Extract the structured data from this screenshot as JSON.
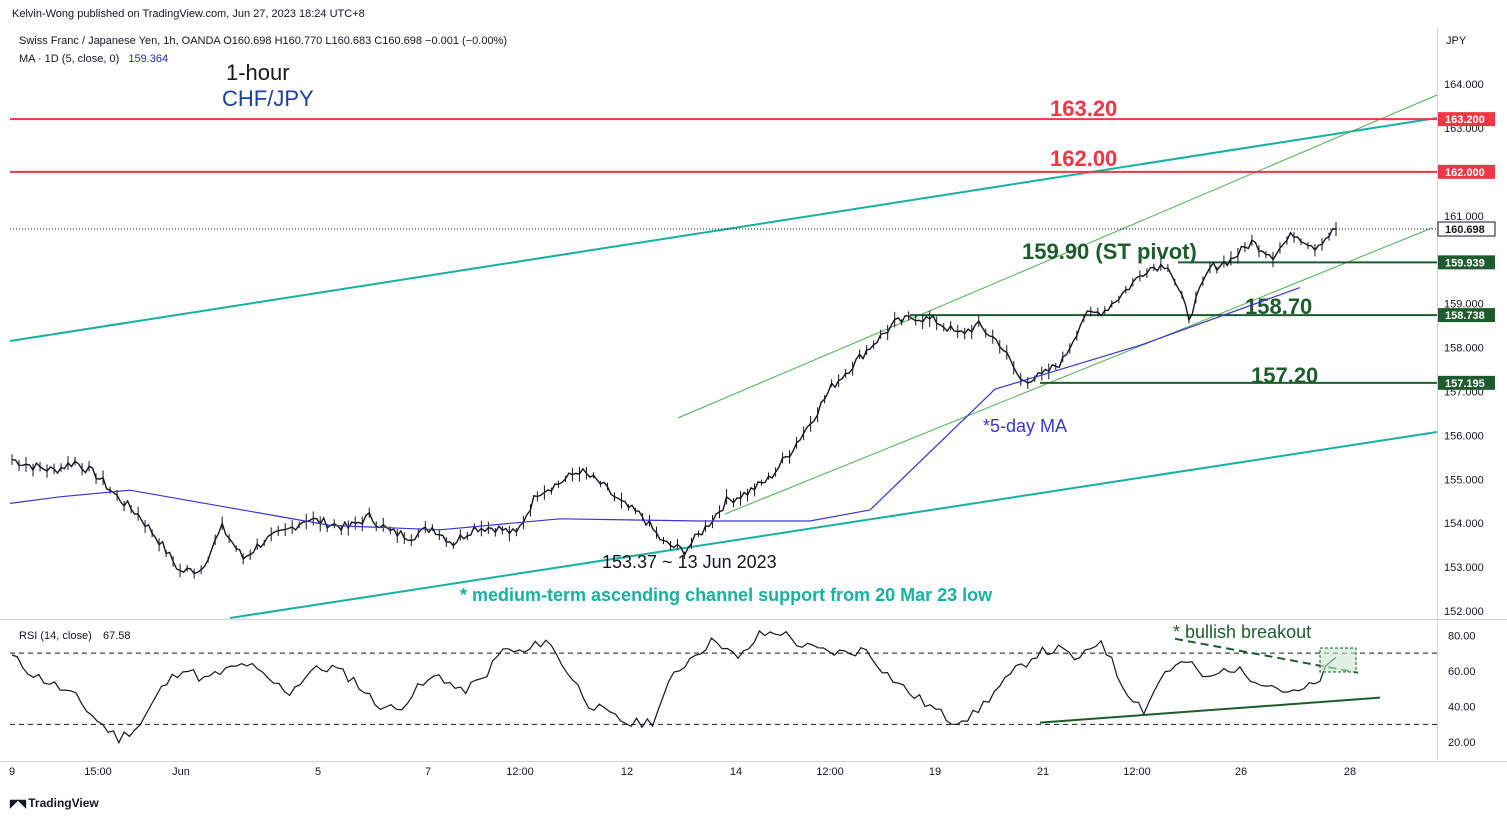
{
  "header": {
    "published_by": "Kelvin-Wong published on TradingView.com, Jun 27, 2023 18:24 UTC+8",
    "symbol_line": "Swiss Franc / Japanese Yen, 1h, OANDA  O160.698  H160.770  L160.683  C160.698  −0.001 (−0.00%)",
    "ma_label": "MA · 1D (5, close, 0)",
    "ma_value": "159.364"
  },
  "footer": {
    "brand": "TradingView"
  },
  "colors": {
    "resistance": "#f23645",
    "support": "#1e5c2e",
    "channel": "#16b1a0",
    "thin_channel": "#4caf50",
    "ma": "#3a36d6",
    "price": "#131722",
    "rsi": "#131722"
  },
  "chart_data": [
    {
      "type": "candlestick",
      "title": "1-hour",
      "subtitle": "CHF/JPY",
      "price_axis_label": "JPY",
      "ylim": [
        151.8,
        165.0
      ],
      "y_ticks": [
        "152.000",
        "153.000",
        "154.000",
        "155.000",
        "156.000",
        "157.000",
        "158.000",
        "159.000",
        "160.000",
        "161.000",
        "162.000",
        "163.000",
        "164.000"
      ],
      "x_ticks": [
        "9",
        "15:00",
        "Jun",
        "5",
        "7",
        "12:00",
        "12",
        "14",
        "12:00",
        "19",
        "21",
        "12:00",
        "26",
        "28"
      ],
      "close_series": [
        155.45,
        155.3,
        155.2,
        155.4,
        155.1,
        154.6,
        154.2,
        153.6,
        152.9,
        152.95,
        153.9,
        153.2,
        153.6,
        153.8,
        154.1,
        154.0,
        153.9,
        154.15,
        153.8,
        153.7,
        153.9,
        153.55,
        153.9,
        153.9,
        153.75,
        154.7,
        154.9,
        155.2,
        154.9,
        154.45,
        154.15,
        153.55,
        153.37,
        153.9,
        154.5,
        154.7,
        155.0,
        155.6,
        156.3,
        157.1,
        157.6,
        158.1,
        158.55,
        158.7,
        158.6,
        158.3,
        158.5,
        158.1,
        157.25,
        157.35,
        157.7,
        158.7,
        158.85,
        159.3,
        159.8,
        159.9,
        158.7,
        159.8,
        160.0,
        160.4,
        160.1,
        160.6,
        160.3,
        160.698
      ],
      "series": [
        {
          "name": "MA · 1D (5, close, 0)",
          "values": [
            154.45,
            154.6,
            154.75,
            154.35,
            153.95,
            153.85,
            154.1,
            154.05,
            154.05,
            154.3,
            157.05,
            158.05,
            159.364
          ]
        }
      ],
      "levels": [
        {
          "label": "163.20",
          "axis_tag": "163.200",
          "value": 163.2,
          "kind": "resistance"
        },
        {
          "label": "162.00",
          "axis_tag": "162.000",
          "value": 162.0,
          "kind": "resistance"
        },
        {
          "label": "159.90 (ST pivot)",
          "axis_tag": "159.939",
          "value": 159.939,
          "kind": "pivot"
        },
        {
          "label": "158.70",
          "axis_tag": "158.738",
          "value": 158.738,
          "kind": "support"
        },
        {
          "label": "157.20",
          "axis_tag": "157.195",
          "value": 157.195,
          "kind": "support"
        }
      ],
      "last_price": "160.698",
      "annotations": [
        "*5-day MA",
        "153.37 ~ 13 Jun 2023",
        "* medium-term ascending channel support from 20 Mar 23 low"
      ]
    },
    {
      "type": "line",
      "title": "RSI (14, close)",
      "value_label": "67.58",
      "ylim": [
        10,
        88
      ],
      "y_ticks": [
        "20.00",
        "40.00",
        "60.00",
        "80.00"
      ],
      "bands": [
        30,
        70
      ],
      "values": [
        68,
        58,
        52,
        45,
        32,
        22,
        30,
        50,
        62,
        55,
        60,
        64,
        55,
        48,
        60,
        62,
        55,
        42,
        38,
        50,
        58,
        48,
        55,
        72,
        70,
        78,
        60,
        42,
        35,
        30,
        32,
        58,
        70,
        78,
        66,
        80,
        82,
        74,
        71,
        70,
        72,
        58,
        48,
        40,
        32,
        35,
        48,
        60,
        70,
        72,
        66,
        78,
        52,
        38,
        60,
        65,
        55,
        62,
        57,
        52,
        47,
        52,
        67.58
      ],
      "annotations": [
        "* bullish breakout"
      ]
    }
  ]
}
